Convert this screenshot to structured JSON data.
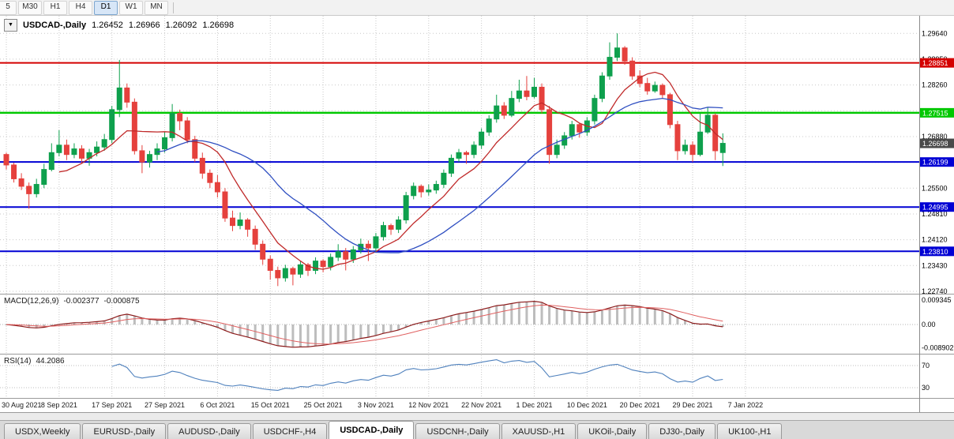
{
  "toolbar": {
    "timeframes": [
      "5",
      "M30",
      "H1",
      "H4",
      "D1",
      "W1",
      "MN"
    ],
    "active_timeframe": "D1"
  },
  "chart_header": {
    "collapse_icon": "▼",
    "title": "USDCAD-,Daily",
    "open": "1.26452",
    "high": "1.26966",
    "low": "1.26092",
    "close": "1.26698"
  },
  "colors": {
    "bull": "#0ea04d",
    "bear": "#e5413d",
    "ma_fast": "#c02a2a",
    "ma_slow": "#2f4fc1",
    "level_red": "#d40000",
    "level_green": "#00c800",
    "level_blue": "#0000d4",
    "macd_hist": "#bdbdbd",
    "macd_line": "#8b1a1a",
    "macd_signal": "#e06060",
    "rsi_line": "#4f81bd",
    "grid": "#c9c9c9",
    "badge_current": "#4a4a4a"
  },
  "chart_data": {
    "type": "candlestick",
    "title": "USDCAD-,Daily",
    "ohlc_header": [
      1.26452,
      1.26966,
      1.26092,
      1.26698
    ],
    "ylim": [
      1.22676,
      1.3011
    ],
    "price_grid_top": 1.2964,
    "price_grid_step": 0.0069,
    "price_axis_labels": [
      "1.29640",
      "1.28950",
      "1.28260",
      "1.27570",
      "1.26880",
      "1.26190",
      "1.25500",
      "1.24810",
      "1.24120",
      "1.23430",
      "1.22740"
    ],
    "levels": [
      {
        "price": 1.28851,
        "label": "1.28851",
        "color_key": "level_red"
      },
      {
        "price": 1.27515,
        "label": "1.27515",
        "color_key": "level_green"
      },
      {
        "price": 1.26199,
        "label": "1.26199",
        "color_key": "level_blue"
      },
      {
        "price": 1.24995,
        "label": "1.24995",
        "color_key": "level_blue"
      },
      {
        "price": 1.2381,
        "label": "1.23810",
        "color_key": "level_blue"
      }
    ],
    "current_price": {
      "price": 1.26698,
      "label": "1.26698"
    },
    "dates": [
      "30 Aug 2021",
      "8 Sep 2021",
      "17 Sep 2021",
      "27 Sep 2021",
      "6 Oct 2021",
      "15 Oct 2021",
      "25 Oct 2021",
      "3 Nov 2021",
      "12 Nov 2021",
      "22 Nov 2021",
      "1 Dec 2021",
      "10 Dec 2021",
      "20 Dec 2021",
      "29 Dec 2021",
      "7 Jan 2022"
    ],
    "candles": [
      [
        1.264,
        1.2645,
        1.26,
        1.2612
      ],
      [
        1.2612,
        1.2618,
        1.2565,
        1.2575
      ],
      [
        1.2575,
        1.259,
        1.2545,
        1.2555
      ],
      [
        1.2555,
        1.2565,
        1.2495,
        1.2535
      ],
      [
        1.2535,
        1.2575,
        1.2525,
        1.256
      ],
      [
        1.256,
        1.2615,
        1.255,
        1.26
      ],
      [
        1.26,
        1.267,
        1.2595,
        1.2645
      ],
      [
        1.2645,
        1.2705,
        1.2635,
        1.2665
      ],
      [
        1.2665,
        1.268,
        1.2625,
        1.264
      ],
      [
        1.264,
        1.267,
        1.263,
        1.2655
      ],
      [
        1.2655,
        1.2665,
        1.2615,
        1.263
      ],
      [
        1.263,
        1.2655,
        1.261,
        1.2645
      ],
      [
        1.2645,
        1.2675,
        1.2635,
        1.266
      ],
      [
        1.266,
        1.2695,
        1.265,
        1.268
      ],
      [
        1.268,
        1.277,
        1.267,
        1.276
      ],
      [
        1.276,
        1.2893,
        1.274,
        1.2818
      ],
      [
        1.2818,
        1.283,
        1.2765,
        1.278
      ],
      [
        1.278,
        1.279,
        1.264,
        1.265
      ],
      [
        1.265,
        1.2665,
        1.259,
        1.262
      ],
      [
        1.262,
        1.265,
        1.2605,
        1.264
      ],
      [
        1.264,
        1.267,
        1.2625,
        1.2655
      ],
      [
        1.2655,
        1.27,
        1.2645,
        1.2685
      ],
      [
        1.2685,
        1.2775,
        1.2675,
        1.275
      ],
      [
        1.275,
        1.276,
        1.2705,
        1.273
      ],
      [
        1.273,
        1.274,
        1.267,
        1.268
      ],
      [
        1.268,
        1.269,
        1.262,
        1.263
      ],
      [
        1.263,
        1.2645,
        1.2575,
        1.259
      ],
      [
        1.259,
        1.26,
        1.255,
        1.2565
      ],
      [
        1.2565,
        1.2585,
        1.2525,
        1.254
      ],
      [
        1.254,
        1.255,
        1.246,
        1.247
      ],
      [
        1.247,
        1.249,
        1.2435,
        1.245
      ],
      [
        1.245,
        1.2485,
        1.244,
        1.2465
      ],
      [
        1.2465,
        1.247,
        1.242,
        1.244
      ],
      [
        1.244,
        1.245,
        1.2385,
        1.24
      ],
      [
        1.24,
        1.241,
        1.2345,
        1.236
      ],
      [
        1.236,
        1.237,
        1.2305,
        1.233
      ],
      [
        1.233,
        1.234,
        1.2288,
        1.231
      ],
      [
        1.231,
        1.2345,
        1.23,
        1.2335
      ],
      [
        1.2335,
        1.234,
        1.229,
        1.232
      ],
      [
        1.232,
        1.2355,
        1.231,
        1.2345
      ],
      [
        1.2345,
        1.235,
        1.2315,
        1.233
      ],
      [
        1.233,
        1.2365,
        1.232,
        1.2355
      ],
      [
        1.2355,
        1.236,
        1.2325,
        1.234
      ],
      [
        1.234,
        1.2375,
        1.233,
        1.2365
      ],
      [
        1.2365,
        1.24,
        1.2355,
        1.238
      ],
      [
        1.238,
        1.239,
        1.233,
        1.236
      ],
      [
        1.236,
        1.2395,
        1.235,
        1.2385
      ],
      [
        1.2385,
        1.2415,
        1.2375,
        1.24
      ],
      [
        1.24,
        1.241,
        1.2355,
        1.239
      ],
      [
        1.239,
        1.243,
        1.238,
        1.242
      ],
      [
        1.242,
        1.246,
        1.241,
        1.245
      ],
      [
        1.245,
        1.2455,
        1.2425,
        1.244
      ],
      [
        1.244,
        1.2475,
        1.243,
        1.2465
      ],
      [
        1.2465,
        1.254,
        1.2455,
        1.253
      ],
      [
        1.253,
        1.2565,
        1.252,
        1.2555
      ],
      [
        1.2555,
        1.256,
        1.2525,
        1.254
      ],
      [
        1.254,
        1.256,
        1.253,
        1.2545
      ],
      [
        1.2545,
        1.257,
        1.2535,
        1.256
      ],
      [
        1.256,
        1.26,
        1.255,
        1.259
      ],
      [
        1.259,
        1.264,
        1.258,
        1.263
      ],
      [
        1.263,
        1.2655,
        1.262,
        1.2645
      ],
      [
        1.2645,
        1.265,
        1.2615,
        1.264
      ],
      [
        1.264,
        1.2675,
        1.263,
        1.2665
      ],
      [
        1.2665,
        1.271,
        1.2655,
        1.27
      ],
      [
        1.27,
        1.2745,
        1.269,
        1.2735
      ],
      [
        1.2735,
        1.28,
        1.2725,
        1.277
      ],
      [
        1.277,
        1.278,
        1.2735,
        1.2745
      ],
      [
        1.2745,
        1.281,
        1.274,
        1.279
      ],
      [
        1.279,
        1.284,
        1.278,
        1.281
      ],
      [
        1.281,
        1.285,
        1.2785,
        1.2795
      ],
      [
        1.2795,
        1.2845,
        1.279,
        1.282
      ],
      [
        1.282,
        1.283,
        1.275,
        1.276
      ],
      [
        1.276,
        1.277,
        1.2615,
        1.264
      ],
      [
        1.264,
        1.268,
        1.263,
        1.2665
      ],
      [
        1.2665,
        1.27,
        1.2655,
        1.269
      ],
      [
        1.269,
        1.273,
        1.268,
        1.272
      ],
      [
        1.272,
        1.2725,
        1.2685,
        1.27
      ],
      [
        1.27,
        1.274,
        1.269,
        1.273
      ],
      [
        1.273,
        1.28,
        1.272,
        1.279
      ],
      [
        1.279,
        1.286,
        1.278,
        1.285
      ],
      [
        1.285,
        1.294,
        1.284,
        1.29
      ],
      [
        1.29,
        1.2964,
        1.289,
        1.2925
      ],
      [
        1.2925,
        1.293,
        1.288,
        1.289
      ],
      [
        1.289,
        1.29,
        1.284,
        1.285
      ],
      [
        1.285,
        1.2865,
        1.282,
        1.283
      ],
      [
        1.283,
        1.2845,
        1.28,
        1.281
      ],
      [
        1.281,
        1.2835,
        1.2805,
        1.2825
      ],
      [
        1.2825,
        1.283,
        1.279,
        1.28
      ],
      [
        1.28,
        1.2805,
        1.271,
        1.272
      ],
      [
        1.272,
        1.273,
        1.2625,
        1.265
      ],
      [
        1.265,
        1.268,
        1.264,
        1.2665
      ],
      [
        1.2665,
        1.2675,
        1.262,
        1.264
      ],
      [
        1.264,
        1.275,
        1.2635,
        1.27
      ],
      [
        1.27,
        1.2765,
        1.2695,
        1.2745
      ],
      [
        1.2745,
        1.275,
        1.2625,
        1.265
      ],
      [
        1.26452,
        1.26966,
        1.26092,
        1.26698
      ]
    ],
    "indicators": {
      "ma_fast_period": 8,
      "ma_slow_period": 21,
      "macd": {
        "label": "MACD(12,26,9)",
        "value_main": "-0.002377",
        "value_signal": "-0.000875",
        "fast": 12,
        "slow": 26,
        "signal": 9,
        "axis_max": "0.009345",
        "axis_zero": "0.00",
        "axis_min": "-0.008902",
        "scale_max": 0.009345,
        "scale_min": -0.008902
      },
      "rsi": {
        "label": "RSI(14)",
        "value": "44.2086",
        "period": 14,
        "levels": [
          70,
          30
        ]
      }
    }
  },
  "bottom_tabs": {
    "tabs": [
      "USDX,Weekly",
      "EURUSD-,Daily",
      "AUDUSD-,Daily",
      "USDCHF-,H4",
      "USDCAD-,Daily",
      "USDCNH-,Daily",
      "XAUUSD-,H1",
      "UKOil-,Daily",
      "DJ30-,Daily",
      "UK100-,H1"
    ],
    "active": "USDCAD-,Daily"
  }
}
